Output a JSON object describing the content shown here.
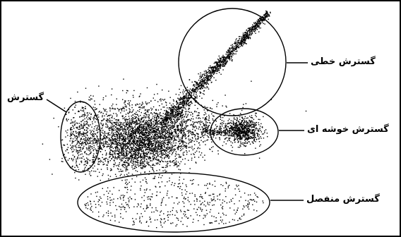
{
  "labels": {
    "linear": "گسترش خطی",
    "spread": "گسترش",
    "cluster": "گسترش خوشه ای",
    "scattered": "گسترش منفصل"
  },
  "colors": {
    "ink": "#000000",
    "background": "#ffffff",
    "border": "#000000"
  }
}
